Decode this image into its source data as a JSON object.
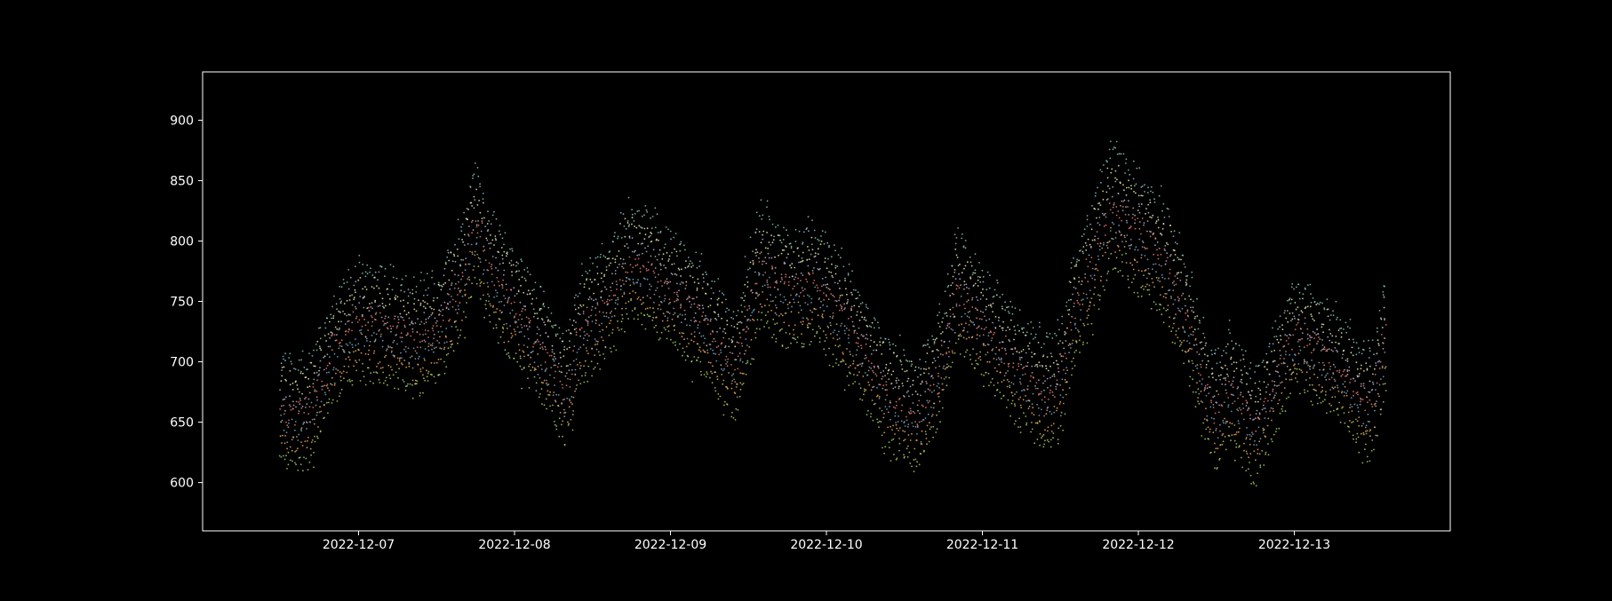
{
  "chart_data": {
    "type": "scatter",
    "title": "",
    "xlabel": "",
    "ylabel": "",
    "background_color": "#000000",
    "axis_color": "#ffffff",
    "grid": false,
    "legend": "none",
    "xlim": [
      "2022-12-06 00:00",
      "2022-12-14 00:00"
    ],
    "ylim": [
      560,
      940
    ],
    "x_ticks": [
      "2022-12-07",
      "2022-12-08",
      "2022-12-09",
      "2022-12-10",
      "2022-12-11",
      "2022-12-12",
      "2022-12-13"
    ],
    "y_ticks": [
      600,
      650,
      700,
      750,
      800,
      850,
      900
    ],
    "series_colors": [
      "#8dd3c7",
      "#feffb3",
      "#bfbbd9",
      "#fa8174",
      "#81b1d2",
      "#fdb462",
      "#b3de69"
    ],
    "x": [
      "2022-12-06 12:00",
      "2022-12-06 16:00",
      "2022-12-06 20:00",
      "2022-12-07 00:00",
      "2022-12-07 04:00",
      "2022-12-07 08:00",
      "2022-12-07 12:00",
      "2022-12-07 16:00",
      "2022-12-07 18:00",
      "2022-12-07 20:00",
      "2022-12-08 00:00",
      "2022-12-08 04:00",
      "2022-12-08 08:00",
      "2022-12-08 10:00",
      "2022-12-08 14:00",
      "2022-12-08 16:00",
      "2022-12-08 18:00",
      "2022-12-08 22:00",
      "2022-12-09 04:00",
      "2022-12-09 08:00",
      "2022-12-09 10:00",
      "2022-12-09 14:00",
      "2022-12-09 16:00",
      "2022-12-09 20:00",
      "2022-12-09 22:00",
      "2022-12-10 04:00",
      "2022-12-10 10:00",
      "2022-12-10 12:00",
      "2022-12-10 14:00",
      "2022-12-10 18:00",
      "2022-12-10 20:00",
      "2022-12-11 04:00",
      "2022-12-11 10:00",
      "2022-12-11 12:00",
      "2022-12-11 14:00",
      "2022-12-11 20:00",
      "2022-12-12 04:00",
      "2022-12-12 08:00",
      "2022-12-12 10:00",
      "2022-12-12 12:00",
      "2022-12-12 14:00",
      "2022-12-12 18:00",
      "2022-12-13 00:00",
      "2022-12-13 04:00",
      "2022-12-13 08:00",
      "2022-12-13 10:00",
      "2022-12-13 12:00",
      "2022-12-13 14:00"
    ],
    "trend": [
      655,
      650,
      705,
      730,
      725,
      715,
      720,
      765,
      810,
      775,
      740,
      710,
      670,
      720,
      745,
      760,
      780,
      765,
      735,
      705,
      690,
      780,
      760,
      755,
      765,
      720,
      665,
      660,
      650,
      700,
      755,
      700,
      665,
      680,
      735,
      825,
      780,
      725,
      680,
      650,
      675,
      640,
      720,
      705,
      685,
      665,
      660,
      720
    ],
    "band_offsets": [
      45,
      30,
      15,
      5,
      -8,
      -20,
      -35
    ]
  }
}
